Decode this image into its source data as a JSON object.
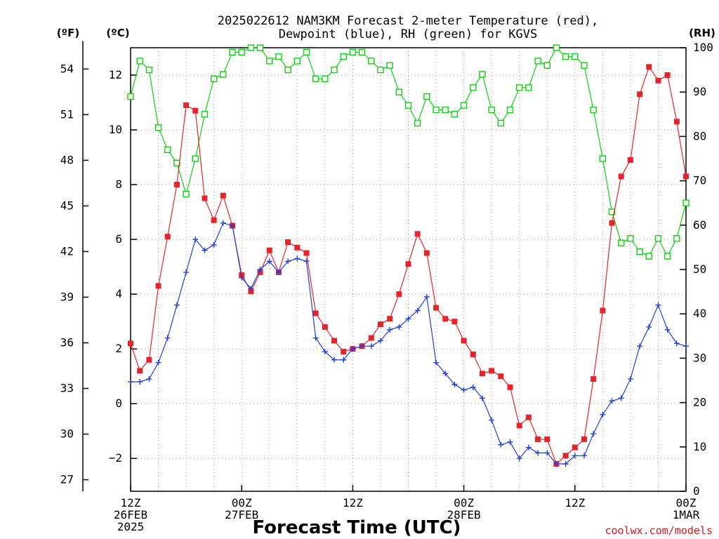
{
  "chart_data": {
    "type": "line",
    "title_line1": "2025022612 NAM3KM Forecast 2-meter Temperature (red),",
    "title_line2": "Dewpoint (blue), RH (green) for KGVS",
    "xlabel": "Forecast Time (UTC)",
    "credit": "coolwx.com/models",
    "unit_labels": {
      "f": "(ºF)",
      "c": "(ºC)",
      "rh": "(RH)"
    },
    "x_range_hours": [
      0,
      60
    ],
    "x_ticks": [
      {
        "h": 0,
        "lines": [
          "12Z",
          "26FEB",
          "2025"
        ]
      },
      {
        "h": 12,
        "lines": [
          "00Z",
          "27FEB"
        ]
      },
      {
        "h": 24,
        "lines": [
          "12Z"
        ]
      },
      {
        "h": 36,
        "lines": [
          "00Z",
          "28FEB"
        ]
      },
      {
        "h": 48,
        "lines": [
          "12Z"
        ]
      },
      {
        "h": 60,
        "lines": [
          "00Z",
          "1MAR"
        ]
      }
    ],
    "c_axis": {
      "range": [
        -3.2,
        13.0
      ],
      "ticks": [
        -2,
        0,
        2,
        4,
        6,
        8,
        10,
        12
      ]
    },
    "f_axis": {
      "ticks": [
        27,
        30,
        33,
        36,
        39,
        42,
        45,
        48,
        51,
        54
      ]
    },
    "rh_axis": {
      "range": [
        0,
        100
      ],
      "ticks": [
        0,
        10,
        20,
        30,
        40,
        50,
        60,
        70,
        80,
        90,
        100
      ]
    },
    "grid": true,
    "colors": {
      "temperature": "#e8232a",
      "dewpoint": "#1f3fe0",
      "rh": "#10d010"
    },
    "series": [
      {
        "name": "Temperature (red)",
        "axis": "c",
        "values": [
          2.2,
          1.2,
          1.6,
          4.3,
          6.1,
          8.0,
          10.9,
          10.7,
          7.5,
          6.7,
          7.6,
          6.5,
          4.7,
          4.1,
          4.8,
          5.6,
          4.8,
          5.9,
          5.7,
          5.5,
          3.3,
          2.8,
          2.3,
          1.9,
          2.0,
          2.1,
          2.4,
          2.9,
          3.1,
          4.0,
          5.1,
          6.2,
          5.5,
          3.5,
          3.1,
          3.0,
          2.3,
          1.8,
          1.1,
          1.2,
          1.0,
          0.6,
          -0.8,
          -0.5,
          -1.3,
          -1.3,
          -2.2,
          -1.9,
          -1.6,
          -1.3,
          0.9,
          3.4,
          6.6,
          8.3,
          8.9,
          11.3,
          12.3,
          11.8,
          12.0,
          10.3,
          8.3
        ]
      },
      {
        "name": "Dewpoint (blue)",
        "axis": "c",
        "values": [
          0.8,
          0.8,
          0.9,
          1.5,
          2.4,
          3.6,
          4.8,
          6.0,
          5.6,
          5.8,
          6.6,
          6.5,
          4.6,
          4.2,
          4.9,
          5.2,
          4.8,
          5.2,
          5.3,
          5.2,
          2.4,
          1.9,
          1.6,
          1.6,
          2.0,
          2.1,
          2.1,
          2.3,
          2.7,
          2.8,
          3.1,
          3.4,
          3.9,
          1.5,
          1.1,
          0.7,
          0.5,
          0.6,
          0.2,
          -0.6,
          -1.5,
          -1.4,
          -2.0,
          -1.6,
          -1.8,
          -1.8,
          -2.2,
          -2.2,
          -1.9,
          -1.9,
          -1.1,
          -0.4,
          0.1,
          0.2,
          0.9,
          2.1,
          2.8,
          3.6,
          2.7,
          2.2,
          2.1
        ]
      },
      {
        "name": "RH (green)",
        "axis": "rh",
        "values": [
          89,
          97,
          95,
          82,
          77,
          74,
          67,
          75,
          85,
          93,
          94,
          99,
          99,
          100,
          100,
          97,
          98,
          95,
          97,
          99,
          93,
          93,
          95,
          98,
          99,
          99,
          97,
          95,
          96,
          90,
          87,
          83,
          89,
          86,
          86,
          85,
          87,
          91,
          94,
          86,
          83,
          86,
          91,
          91,
          97,
          96,
          100,
          98,
          98,
          96,
          86,
          75,
          63,
          56,
          57,
          54,
          53,
          57,
          53,
          57,
          65
        ]
      }
    ]
  }
}
